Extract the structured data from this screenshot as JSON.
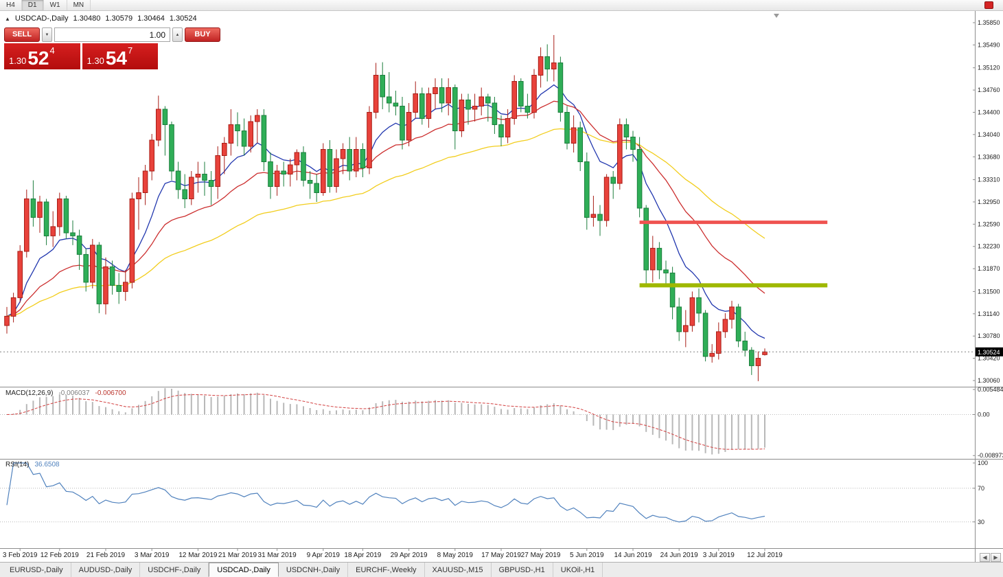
{
  "toolbar": {
    "timeframes": [
      {
        "label": "H4",
        "active": false
      },
      {
        "label": "D1",
        "active": true
      },
      {
        "label": "W1",
        "active": false
      },
      {
        "label": "MN",
        "active": false
      }
    ]
  },
  "ui_colors": {
    "trade_button": "#cf2b24",
    "quote_panel": "#c31212",
    "toolbar_red_button": "#d42424"
  },
  "chart_title": {
    "symbol": "USDCAD-,Daily",
    "open": "1.30480",
    "high": "1.30579",
    "low": "1.30464",
    "close": "1.30524"
  },
  "trade_panel": {
    "sell_label": "SELL",
    "buy_label": "BUY",
    "volume": "1.00",
    "bid": {
      "prefix": "1.30",
      "big": "52",
      "sup": "4"
    },
    "ask": {
      "prefix": "1.30",
      "big": "54",
      "sup": "7"
    }
  },
  "price_axis": {
    "labels": [
      "1.35850",
      "1.35490",
      "1.35120",
      "1.34760",
      "1.34400",
      "1.34040",
      "1.33680",
      "1.33310",
      "1.32950",
      "1.32590",
      "1.32230",
      "1.31870",
      "1.31500",
      "1.31140",
      "1.30780",
      "1.30420",
      "1.30060"
    ],
    "current": "1.30524"
  },
  "x_axis": {
    "labels": [
      {
        "text": "3 Feb 2019",
        "bar": 2
      },
      {
        "text": "12 Feb 2019",
        "bar": 8
      },
      {
        "text": "21 Feb 2019",
        "bar": 15
      },
      {
        "text": "3 Mar 2019",
        "bar": 22
      },
      {
        "text": "12 Mar 2019",
        "bar": 29
      },
      {
        "text": "21 Mar 2019",
        "bar": 35
      },
      {
        "text": "31 Mar 2019",
        "bar": 41
      },
      {
        "text": "9 Apr 2019",
        "bar": 48
      },
      {
        "text": "18 Apr 2019",
        "bar": 54
      },
      {
        "text": "29 Apr 2019",
        "bar": 61
      },
      {
        "text": "8 May 2019",
        "bar": 68
      },
      {
        "text": "17 May 2019",
        "bar": 75
      },
      {
        "text": "27 May 2019",
        "bar": 81
      },
      {
        "text": "5 Jun 2019",
        "bar": 88
      },
      {
        "text": "14 Jun 2019",
        "bar": 95
      },
      {
        "text": "24 Jun 2019",
        "bar": 102
      },
      {
        "text": "3 Jul 2019",
        "bar": 108
      },
      {
        "text": "12 Jul 2019",
        "bar": 115
      }
    ]
  },
  "indicators": {
    "macd": {
      "name": "MACD(12,26,9)",
      "value_main": "-0.006037",
      "value_signal": "-0.006700",
      "axis_labels": [
        "0.005484",
        "0.00",
        "-0.008973"
      ],
      "params": {
        "fast": 12,
        "slow": 26,
        "signal": 9
      },
      "colors": {
        "histogram": "#b8b8b8",
        "signal": "#d23f3f"
      },
      "ylim": [
        -0.00969,
        0.006085
      ]
    },
    "rsi": {
      "name": "RSI(14)",
      "value": "36.6508",
      "period": 14,
      "axis_labels": [
        "100",
        "70",
        "30"
      ],
      "levels": [
        70,
        30
      ],
      "color": "#4f81bd",
      "ylim": [
        -1.2,
        104.9
      ]
    }
  },
  "chart_data": {
    "type": "candlestick",
    "symbol": "USDCAD",
    "timeframe": "Daily",
    "title": "USDCAD-,Daily  1.30480 1.30579 1.30464 1.30524",
    "ylim": [
      1.2996,
      1.36039
    ],
    "up_color": "#e8423b",
    "up_stroke": "#a81d16",
    "down_color": "#2fae57",
    "down_stroke": "#1b7e3c",
    "moving_averages": [
      {
        "period": 10,
        "color": "#2036ae"
      },
      {
        "period": 24,
        "color": "#cc2e2e"
      },
      {
        "period": 52,
        "color": "#f2cd1c"
      }
    ],
    "hlines": [
      {
        "name": "resistance-line",
        "price": 1.3262,
        "from_bar": 96,
        "to_bar": 124.5,
        "color": "#ef5350",
        "width": 5
      },
      {
        "name": "support-line",
        "price": 1.316,
        "from_bar": 96,
        "to_bar": 124.5,
        "color": "#9fb800",
        "width": 6
      }
    ],
    "ohlc": [
      [
        1.3095,
        1.3125,
        1.3082,
        1.311
      ],
      [
        1.311,
        1.3148,
        1.31,
        1.314
      ],
      [
        1.314,
        1.3225,
        1.3132,
        1.3215
      ],
      [
        1.3215,
        1.3315,
        1.3205,
        1.33
      ],
      [
        1.33,
        1.333,
        1.3255,
        1.327
      ],
      [
        1.327,
        1.3305,
        1.3245,
        1.3295
      ],
      [
        1.3295,
        1.33,
        1.3225,
        1.324
      ],
      [
        1.324,
        1.328,
        1.3222,
        1.3255
      ],
      [
        1.3255,
        1.331,
        1.324,
        1.33
      ],
      [
        1.33,
        1.3305,
        1.3235,
        1.3245
      ],
      [
        1.3245,
        1.3265,
        1.3225,
        1.324
      ],
      [
        1.324,
        1.325,
        1.3185,
        1.321
      ],
      [
        1.321,
        1.322,
        1.315,
        1.3165
      ],
      [
        1.3165,
        1.3235,
        1.3155,
        1.3225
      ],
      [
        1.3225,
        1.323,
        1.3115,
        1.313
      ],
      [
        1.313,
        1.3205,
        1.3113,
        1.319
      ],
      [
        1.319,
        1.32,
        1.3145,
        1.316
      ],
      [
        1.316,
        1.318,
        1.313,
        1.315
      ],
      [
        1.315,
        1.3185,
        1.3135,
        1.3165
      ],
      [
        1.3165,
        1.331,
        1.3155,
        1.33
      ],
      [
        1.33,
        1.3335,
        1.325,
        1.331
      ],
      [
        1.331,
        1.3355,
        1.329,
        1.3345
      ],
      [
        1.3345,
        1.3405,
        1.333,
        1.3395
      ],
      [
        1.3395,
        1.3467,
        1.3385,
        1.3445
      ],
      [
        1.3445,
        1.345,
        1.337,
        1.342
      ],
      [
        1.342,
        1.3425,
        1.333,
        1.3345
      ],
      [
        1.3345,
        1.336,
        1.33,
        1.3315
      ],
      [
        1.3315,
        1.334,
        1.3285,
        1.33
      ],
      [
        1.33,
        1.3345,
        1.329,
        1.3335
      ],
      [
        1.3335,
        1.336,
        1.331,
        1.334
      ],
      [
        1.334,
        1.336,
        1.3305,
        1.333
      ],
      [
        1.333,
        1.3345,
        1.329,
        1.332
      ],
      [
        1.332,
        1.3385,
        1.33,
        1.337
      ],
      [
        1.337,
        1.34,
        1.334,
        1.339
      ],
      [
        1.339,
        1.3445,
        1.337,
        1.342
      ],
      [
        1.342,
        1.344,
        1.3385,
        1.341
      ],
      [
        1.341,
        1.343,
        1.337,
        1.3385
      ],
      [
        1.3385,
        1.3435,
        1.3375,
        1.3425
      ],
      [
        1.3425,
        1.3445,
        1.339,
        1.3435
      ],
      [
        1.3435,
        1.3445,
        1.3345,
        1.336
      ],
      [
        1.336,
        1.3375,
        1.33,
        1.332
      ],
      [
        1.332,
        1.3355,
        1.3305,
        1.3345
      ],
      [
        1.3345,
        1.336,
        1.332,
        1.334
      ],
      [
        1.334,
        1.3365,
        1.332,
        1.3355
      ],
      [
        1.3355,
        1.338,
        1.333,
        1.3375
      ],
      [
        1.3375,
        1.3385,
        1.332,
        1.333
      ],
      [
        1.333,
        1.3345,
        1.33,
        1.3325
      ],
      [
        1.3325,
        1.334,
        1.3295,
        1.331
      ],
      [
        1.331,
        1.339,
        1.3305,
        1.338
      ],
      [
        1.338,
        1.3395,
        1.331,
        1.332
      ],
      [
        1.332,
        1.338,
        1.331,
        1.3365
      ],
      [
        1.3365,
        1.339,
        1.334,
        1.338
      ],
      [
        1.338,
        1.34,
        1.333,
        1.3345
      ],
      [
        1.3345,
        1.34,
        1.3335,
        1.338
      ],
      [
        1.338,
        1.339,
        1.3335,
        1.335
      ],
      [
        1.335,
        1.345,
        1.334,
        1.344
      ],
      [
        1.344,
        1.352,
        1.343,
        1.35
      ],
      [
        1.35,
        1.3521,
        1.3445,
        1.3465
      ],
      [
        1.3465,
        1.3505,
        1.344,
        1.3455
      ],
      [
        1.3455,
        1.3475,
        1.3435,
        1.345
      ],
      [
        1.345,
        1.3465,
        1.338,
        1.3395
      ],
      [
        1.3395,
        1.3455,
        1.3385,
        1.344
      ],
      [
        1.344,
        1.349,
        1.343,
        1.347
      ],
      [
        1.347,
        1.348,
        1.342,
        1.343
      ],
      [
        1.343,
        1.348,
        1.3415,
        1.347
      ],
      [
        1.347,
        1.3495,
        1.3445,
        1.348
      ],
      [
        1.348,
        1.3495,
        1.344,
        1.3455
      ],
      [
        1.3455,
        1.3495,
        1.3435,
        1.348
      ],
      [
        1.348,
        1.3485,
        1.338,
        1.341
      ],
      [
        1.341,
        1.347,
        1.34,
        1.346
      ],
      [
        1.346,
        1.347,
        1.342,
        1.3445
      ],
      [
        1.3445,
        1.347,
        1.3425,
        1.345
      ],
      [
        1.345,
        1.348,
        1.3435,
        1.3465
      ],
      [
        1.3465,
        1.347,
        1.3425,
        1.3455
      ],
      [
        1.3455,
        1.3465,
        1.3405,
        1.342
      ],
      [
        1.342,
        1.3435,
        1.3385,
        1.34
      ],
      [
        1.34,
        1.3445,
        1.339,
        1.343
      ],
      [
        1.343,
        1.35,
        1.342,
        1.349
      ],
      [
        1.349,
        1.3495,
        1.344,
        1.345
      ],
      [
        1.345,
        1.347,
        1.343,
        1.344
      ],
      [
        1.344,
        1.351,
        1.343,
        1.35
      ],
      [
        1.35,
        1.3545,
        1.348,
        1.353
      ],
      [
        1.353,
        1.355,
        1.349,
        1.351
      ],
      [
        1.351,
        1.3565,
        1.349,
        1.352
      ],
      [
        1.352,
        1.353,
        1.3425,
        1.344
      ],
      [
        1.344,
        1.345,
        1.338,
        1.339
      ],
      [
        1.339,
        1.3435,
        1.3375,
        1.3415
      ],
      [
        1.3415,
        1.3425,
        1.3345,
        1.336
      ],
      [
        1.336,
        1.3375,
        1.325,
        1.327
      ],
      [
        1.327,
        1.3305,
        1.3255,
        1.3275
      ],
      [
        1.3275,
        1.329,
        1.324,
        1.3265
      ],
      [
        1.3265,
        1.334,
        1.3255,
        1.3335
      ],
      [
        1.3335,
        1.3345,
        1.33,
        1.3325
      ],
      [
        1.3325,
        1.343,
        1.3315,
        1.342
      ],
      [
        1.342,
        1.343,
        1.338,
        1.34
      ],
      [
        1.34,
        1.341,
        1.336,
        1.338
      ],
      [
        1.338,
        1.34,
        1.327,
        1.3285
      ],
      [
        1.3285,
        1.329,
        1.316,
        1.3185
      ],
      [
        1.3185,
        1.324,
        1.3165,
        1.322
      ],
      [
        1.322,
        1.323,
        1.317,
        1.3185
      ],
      [
        1.3185,
        1.32,
        1.316,
        1.318
      ],
      [
        1.318,
        1.319,
        1.3105,
        1.3125
      ],
      [
        1.3125,
        1.314,
        1.307,
        1.3085
      ],
      [
        1.3085,
        1.312,
        1.306,
        1.3095
      ],
      [
        1.3095,
        1.315,
        1.3085,
        1.314
      ],
      [
        1.314,
        1.3155,
        1.31,
        1.3115
      ],
      [
        1.3115,
        1.312,
        1.3037,
        1.3045
      ],
      [
        1.3045,
        1.3065,
        1.3035,
        1.305
      ],
      [
        1.305,
        1.31,
        1.304,
        1.3085
      ],
      [
        1.3085,
        1.3115,
        1.3075,
        1.3105
      ],
      [
        1.3105,
        1.3135,
        1.309,
        1.3125
      ],
      [
        1.3125,
        1.313,
        1.306,
        1.307
      ],
      [
        1.307,
        1.3085,
        1.3045,
        1.3055
      ],
      [
        1.3055,
        1.306,
        1.3015,
        1.303
      ],
      [
        1.303,
        1.3053,
        1.3005,
        1.3042
      ],
      [
        1.3048,
        1.30579,
        1.30464,
        1.30524
      ]
    ]
  },
  "tabs": [
    {
      "label": "EURUSD-,Daily",
      "active": false
    },
    {
      "label": "AUDUSD-,Daily",
      "active": false
    },
    {
      "label": "USDCHF-,Daily",
      "active": false
    },
    {
      "label": "USDCAD-,Daily",
      "active": true
    },
    {
      "label": "USDCNH-,Daily",
      "active": false
    },
    {
      "label": "EURCHF-,Weekly",
      "active": false
    },
    {
      "label": "XAUUSD-,M15",
      "active": false
    },
    {
      "label": "GBPUSD-,H1",
      "active": false
    },
    {
      "label": "UKOil-,H1",
      "active": false
    }
  ]
}
